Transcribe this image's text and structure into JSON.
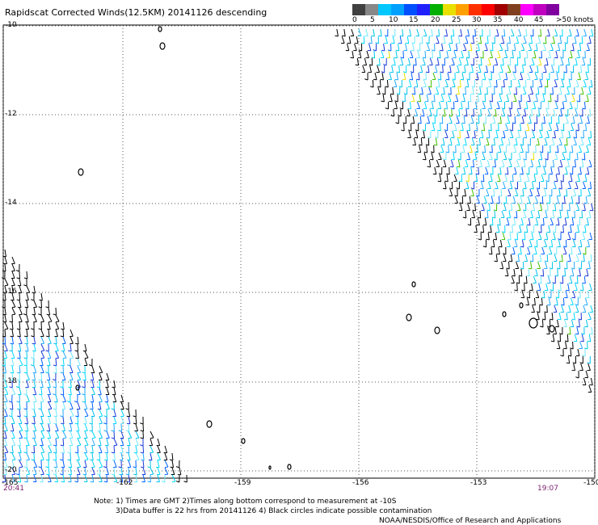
{
  "title": "Rapidscat Corrected Winds(12.5KM) 20141126 descending",
  "colorbar": {
    "colors": [
      "#404040",
      "#888888",
      "#00c8ff",
      "#00a0ff",
      "#0050ff",
      "#2020ff",
      "#00b000",
      "#e8e000",
      "#ffa000",
      "#ff3000",
      "#ff0000",
      "#a00000",
      "#804020",
      "#ff00ff",
      "#c000c0",
      "#8000a0"
    ],
    "labels": [
      "0",
      "5",
      "10",
      "15",
      "20",
      "25",
      "30",
      "35",
      "40",
      "45",
      ">50 knots"
    ]
  },
  "axes": {
    "lat_labels": [
      "-10",
      "-12",
      "-14",
      "-16",
      "-18",
      "-20"
    ],
    "lon_labels": [
      "-165",
      "-162",
      "-159",
      "-156",
      "-153",
      "-150"
    ]
  },
  "times": {
    "left": "20:41",
    "right": "19:07"
  },
  "notes": {
    "line1": "Note: 1) Times are GMT 2)Times along bottom correspond to measurement at -10S",
    "line2": "3)Data buffer is 22 hrs from 20141126 4) Black circles indicate possible contamination",
    "line3": "NOAA/NESDIS/Office of Research and Applications"
  }
}
